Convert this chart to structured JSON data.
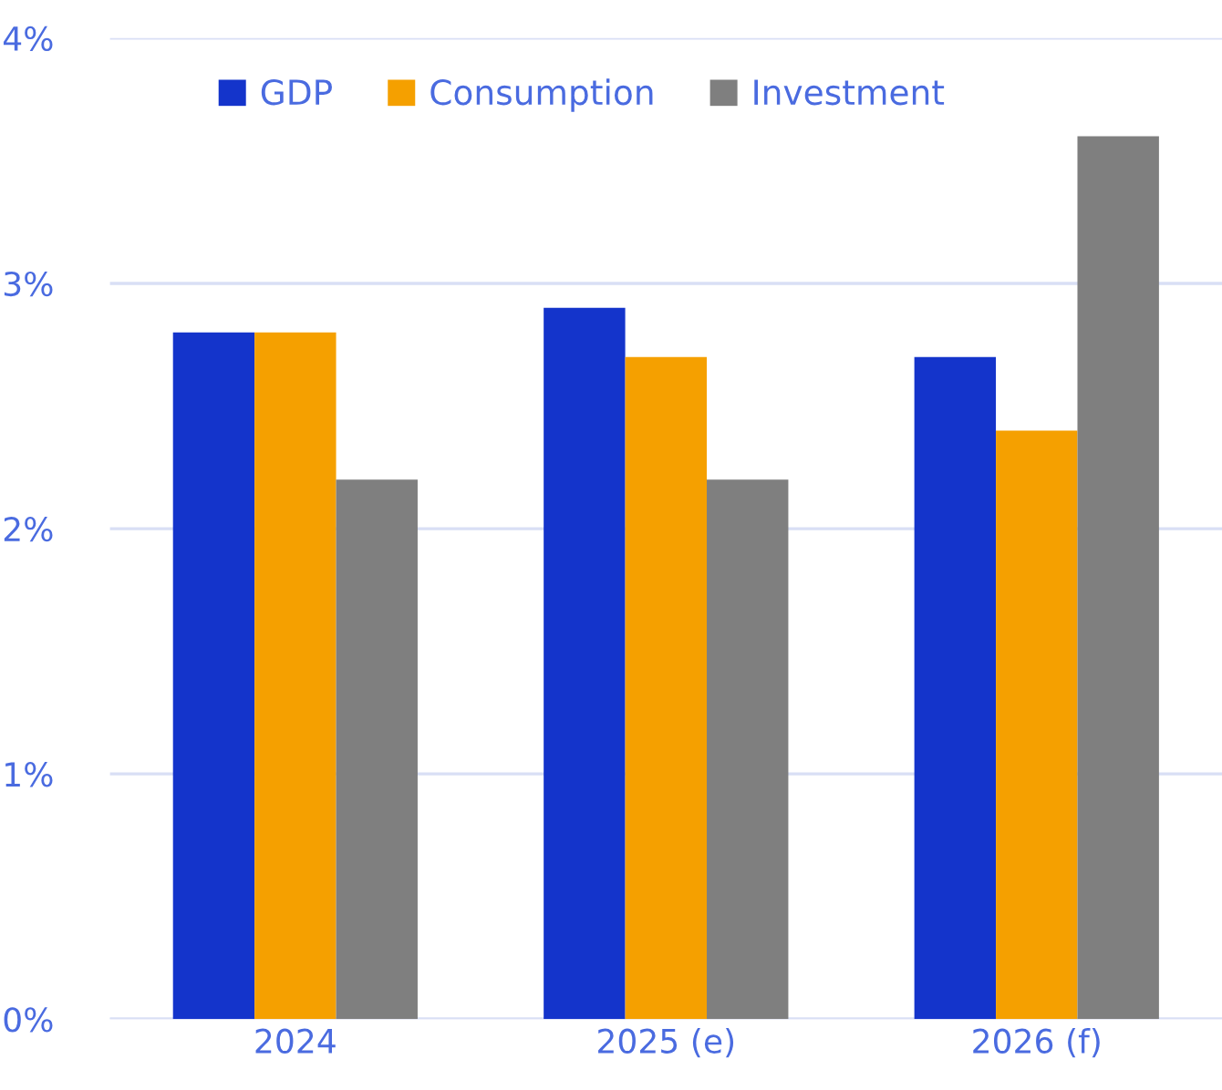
{
  "chart_data": {
    "type": "bar",
    "categories": [
      "2024",
      "2025 (e)",
      "2026 (f)"
    ],
    "series": [
      {
        "name": "GDP",
        "color": "#1434cb",
        "values": [
          2.8,
          2.9,
          2.7
        ]
      },
      {
        "name": "Consumption",
        "color": "#f5a000",
        "values": [
          2.8,
          2.7,
          2.4
        ]
      },
      {
        "name": "Investment",
        "color": "#7f7f7f",
        "values": [
          2.2,
          2.2,
          3.6
        ]
      }
    ],
    "ylim": [
      0,
      4
    ],
    "yticks": [
      {
        "value": 0,
        "label": "0%"
      },
      {
        "value": 1,
        "label": "1%"
      },
      {
        "value": 2,
        "label": "2%"
      },
      {
        "value": 3,
        "label": "3%"
      },
      {
        "value": 4,
        "label": "4%"
      }
    ],
    "grid": "y",
    "legend": "top left"
  }
}
